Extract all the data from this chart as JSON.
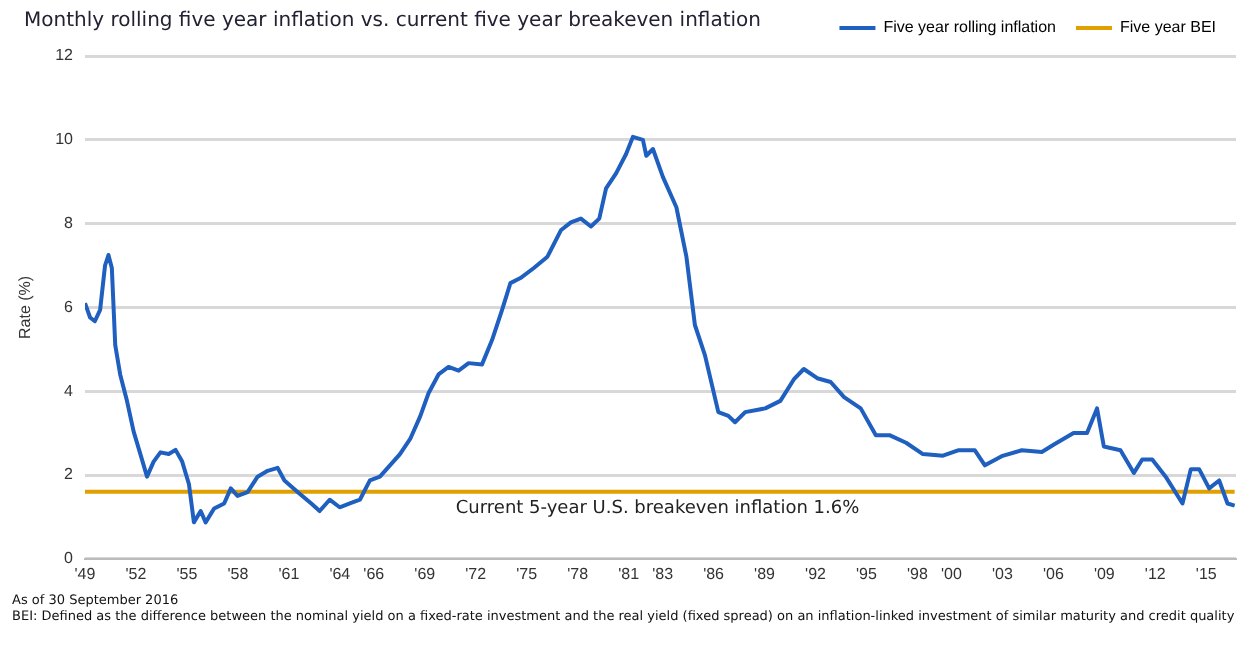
{
  "chart_data": {
    "type": "line",
    "title": "Monthly rolling five year inflation vs. current five year breakeven inflation",
    "ylabel": "Rate (%)",
    "xlim": [
      1949,
      2016.75
    ],
    "ylim": [
      0,
      12
    ],
    "yticks": [
      0,
      2,
      4,
      6,
      8,
      10,
      12
    ],
    "xticks": [
      {
        "value": 1949,
        "label": "'49"
      },
      {
        "value": 1952,
        "label": "'52"
      },
      {
        "value": 1955,
        "label": "'55"
      },
      {
        "value": 1958,
        "label": "'58"
      },
      {
        "value": 1961,
        "label": "'61"
      },
      {
        "value": 1964,
        "label": "'64"
      },
      {
        "value": 1966,
        "label": "'66"
      },
      {
        "value": 1969,
        "label": "'69"
      },
      {
        "value": 1972,
        "label": "'72"
      },
      {
        "value": 1975,
        "label": "'75"
      },
      {
        "value": 1978,
        "label": "'78"
      },
      {
        "value": 1981,
        "label": "'81"
      },
      {
        "value": 1983,
        "label": "'83"
      },
      {
        "value": 1986,
        "label": "'86"
      },
      {
        "value": 1989,
        "label": "'89"
      },
      {
        "value": 1992,
        "label": "'92"
      },
      {
        "value": 1995,
        "label": "'95"
      },
      {
        "value": 1998,
        "label": "'98"
      },
      {
        "value": 2000,
        "label": "'00"
      },
      {
        "value": 2003,
        "label": "'03"
      },
      {
        "value": 2006,
        "label": "'06"
      },
      {
        "value": 2009,
        "label": "'09"
      },
      {
        "value": 2012,
        "label": "'12"
      },
      {
        "value": 2015,
        "label": "'15"
      }
    ],
    "grid": "y",
    "legend": "top right",
    "marker": "none",
    "line_style": "solid",
    "series": [
      {
        "name": "Five year rolling inflation",
        "color": "#1f5fbf",
        "x": [
          1949.0,
          1949.3,
          1949.58,
          1949.89,
          1950.18,
          1950.38,
          1950.58,
          1950.78,
          1951.07,
          1951.47,
          1951.86,
          1952.26,
          1952.65,
          1953.04,
          1953.44,
          1953.93,
          1954.33,
          1954.72,
          1955.12,
          1955.41,
          1955.81,
          1956.1,
          1956.6,
          1957.19,
          1957.58,
          1957.98,
          1958.57,
          1959.16,
          1959.75,
          1960.34,
          1960.74,
          1961.53,
          1962.32,
          1962.81,
          1963.4,
          1963.99,
          1964.59,
          1965.18,
          1965.77,
          1966.36,
          1966.95,
          1967.54,
          1968.14,
          1968.73,
          1969.22,
          1969.81,
          1970.4,
          1970.99,
          1971.58,
          1972.37,
          1972.96,
          1973.55,
          1974.04,
          1974.63,
          1975.42,
          1976.22,
          1977.01,
          1977.6,
          1978.19,
          1978.78,
          1979.27,
          1979.67,
          1980.26,
          1980.85,
          1981.25,
          1981.84,
          1982.04,
          1982.43,
          1983.02,
          1983.81,
          1984.4,
          1984.9,
          1985.49,
          1986.28,
          1986.87,
          1987.26,
          1987.86,
          1989.04,
          1989.93,
          1990.72,
          1991.31,
          1992.1,
          1992.89,
          1993.68,
          1994.66,
          1995.55,
          1996.35,
          1997.33,
          1998.32,
          1999.5,
          2000.39,
          2001.38,
          2001.97,
          2002.96,
          2004.14,
          2005.32,
          2006.01,
          2007.19,
          2007.98,
          2008.57,
          2008.97,
          2009.95,
          2010.74,
          2011.23,
          2011.82,
          2012.61,
          2013.6,
          2014.09,
          2014.58,
          2015.17,
          2015.76,
          2016.25,
          2016.67
        ],
        "values": [
          6.1,
          5.76,
          5.67,
          5.94,
          7.0,
          7.25,
          6.94,
          5.1,
          4.4,
          3.77,
          3.04,
          2.5,
          1.96,
          2.32,
          2.54,
          2.5,
          2.6,
          2.32,
          1.78,
          0.87,
          1.14,
          0.87,
          1.2,
          1.32,
          1.68,
          1.5,
          1.59,
          1.96,
          2.1,
          2.17,
          1.87,
          1.59,
          1.32,
          1.14,
          1.41,
          1.23,
          1.32,
          1.41,
          1.87,
          1.96,
          2.23,
          2.5,
          2.86,
          3.4,
          3.95,
          4.4,
          4.58,
          4.49,
          4.67,
          4.64,
          5.22,
          5.94,
          6.58,
          6.7,
          6.94,
          7.21,
          7.84,
          8.03,
          8.12,
          7.93,
          8.12,
          8.84,
          9.2,
          9.66,
          10.07,
          10.0,
          9.62,
          9.78,
          9.11,
          8.39,
          7.21,
          5.58,
          4.86,
          3.5,
          3.41,
          3.26,
          3.5,
          3.59,
          3.77,
          4.28,
          4.53,
          4.31,
          4.22,
          3.86,
          3.59,
          2.95,
          2.95,
          2.77,
          2.5,
          2.46,
          2.59,
          2.59,
          2.23,
          2.45,
          2.59,
          2.55,
          2.72,
          3.0,
          3.0,
          3.59,
          2.68,
          2.59,
          2.05,
          2.37,
          2.37,
          1.96,
          1.32,
          2.14,
          2.14,
          1.68,
          1.87,
          1.32,
          1.27
        ]
      },
      {
        "name": "Five year BEI",
        "color": "#e0a000",
        "x": [
          1949,
          2016.67
        ],
        "values": [
          1.6,
          1.6
        ]
      }
    ],
    "annotations": [
      {
        "text": "Current 5-year U.S. breakeven inflation 1.6%",
        "x": 1982.7,
        "y": 1.6
      },
      "As of 30 September 2016",
      "BEI: Defined as the difference between the nominal yield on a fixed-rate investment and the real yield (fixed spread) on an inflation-linked investment of similar maturity and credit quality"
    ]
  }
}
